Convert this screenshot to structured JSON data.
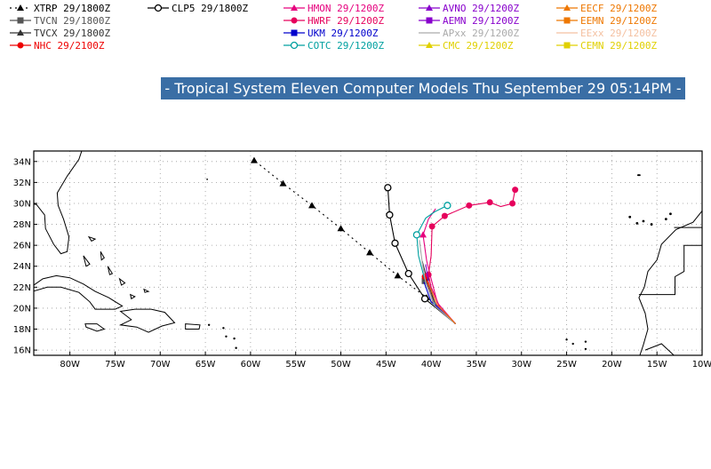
{
  "title": "- Tropical System Eleven Computer Models Thu September 29 05:14PM -",
  "legend": [
    {
      "id": "xtrp",
      "label": "XTRP  29/1800Z",
      "color": "#000000",
      "marker": "triangle",
      "dash": "2,4"
    },
    {
      "id": "tvcn",
      "label": "TVCN  29/1800Z",
      "color": "#555555",
      "marker": "square",
      "dash": ""
    },
    {
      "id": "tvcx",
      "label": "TVCX  29/1800Z",
      "color": "#333333",
      "marker": "triangle",
      "dash": ""
    },
    {
      "id": "nhc",
      "label": "NHC  29/2100Z",
      "color": "#ee0000",
      "marker": "circle",
      "dash": ""
    },
    {
      "id": "clp5",
      "label": "CLP5  29/1800Z",
      "color": "#000000",
      "marker": "ring",
      "dash": ""
    },
    {
      "id": "hmon",
      "label": "HMON  29/1200Z",
      "color": "#e6007e",
      "marker": "triangle",
      "dash": ""
    },
    {
      "id": "hwrf",
      "label": "HWRF  29/1200Z",
      "color": "#e6005c",
      "marker": "circle",
      "dash": ""
    },
    {
      "id": "ukm",
      "label": "UKM  29/1200Z",
      "color": "#0000cc",
      "marker": "square",
      "dash": ""
    },
    {
      "id": "cotc",
      "label": "COTC  29/1200Z",
      "color": "#00a0a0",
      "marker": "ring",
      "dash": ""
    },
    {
      "id": "avno",
      "label": "AVNO  29/1200Z",
      "color": "#8800cc",
      "marker": "triangle",
      "dash": ""
    },
    {
      "id": "aemn",
      "label": "AEMN  29/1200Z",
      "color": "#8800cc",
      "marker": "square",
      "dash": ""
    },
    {
      "id": "apxx",
      "label": "APxx  29/1200Z",
      "color": "#aaaaaa",
      "marker": "none",
      "dash": ""
    },
    {
      "id": "cmc",
      "label": "CMC  29/1200Z",
      "color": "#e0d000",
      "marker": "triangle",
      "dash": ""
    },
    {
      "id": "eecf",
      "label": "EECF  29/1200Z",
      "color": "#ee7700",
      "marker": "triangle",
      "dash": ""
    },
    {
      "id": "eemn",
      "label": "EEMN  29/1200Z",
      "color": "#ee7700",
      "marker": "square",
      "dash": ""
    },
    {
      "id": "eexx",
      "label": "EExx  29/1200Z",
      "color": "#f4c0a0",
      "marker": "none",
      "dash": ""
    },
    {
      "id": "cemn",
      "label": "CEMN  29/1200Z",
      "color": "#e0d000",
      "marker": "square",
      "dash": ""
    }
  ],
  "map": {
    "lon_range": [
      -84,
      -10
    ],
    "lat_range": [
      15.5,
      35
    ],
    "lon_ticks": [
      -80,
      -75,
      -70,
      -65,
      -60,
      -55,
      -50,
      -45,
      -40,
      -35,
      -30,
      -25,
      -20,
      -15,
      -10
    ],
    "lon_labels": [
      "80W",
      "75W",
      "70W",
      "65W",
      "60W",
      "55W",
      "50W",
      "45W",
      "40W",
      "35W",
      "30W",
      "25W",
      "20W",
      "15W",
      "10W"
    ],
    "lat_ticks": [
      16,
      18,
      20,
      22,
      24,
      26,
      28,
      30,
      32,
      34
    ],
    "lat_labels": [
      "16N",
      "18N",
      "20N",
      "22N",
      "24N",
      "26N",
      "28N",
      "30N",
      "32N",
      "34N"
    ],
    "grid": true
  },
  "tracks": [
    {
      "model": "xtrp",
      "points": [
        [
          -37.3,
          18.5
        ],
        [
          -40.5,
          21.0
        ],
        [
          -43.7,
          23.1
        ],
        [
          -46.8,
          25.3
        ],
        [
          -50.0,
          27.6
        ],
        [
          -53.2,
          29.8
        ],
        [
          -56.4,
          31.9
        ],
        [
          -59.6,
          34.1
        ]
      ]
    },
    {
      "model": "clp5",
      "points": [
        [
          -37.3,
          18.5
        ],
        [
          -40.7,
          20.9
        ],
        [
          -42.5,
          23.3
        ],
        [
          -44.0,
          26.2
        ],
        [
          -44.6,
          28.9
        ],
        [
          -44.8,
          31.5
        ]
      ]
    },
    {
      "model": "tvcn",
      "points": [
        [
          -37.3,
          18.5
        ],
        [
          -39.5,
          20.2
        ],
        [
          -40.7,
          22.6
        ]
      ]
    },
    {
      "model": "tvcx",
      "points": [
        [
          -37.3,
          18.5
        ],
        [
          -39.6,
          20.4
        ],
        [
          -40.5,
          22.9
        ],
        [
          -41.0,
          24.5
        ]
      ]
    },
    {
      "model": "nhc",
      "points": [
        [
          -37.3,
          18.5
        ],
        [
          -39.8,
          20.5
        ],
        [
          -40.5,
          22.6
        ],
        [
          -40.7,
          23.0
        ]
      ]
    },
    {
      "model": "hmon",
      "points": [
        [
          -37.3,
          18.5
        ],
        [
          -39.3,
          20.5
        ],
        [
          -40.0,
          22.8
        ],
        [
          -40.5,
          24.5
        ],
        [
          -40.9,
          27.0
        ],
        [
          -40.3,
          28.5
        ],
        [
          -39.5,
          29.5
        ]
      ]
    },
    {
      "model": "hwrf",
      "points": [
        [
          -37.3,
          18.5
        ],
        [
          -39.0,
          20.0
        ],
        [
          -40.0,
          22.0
        ],
        [
          -40.3,
          23.2
        ],
        [
          -40.0,
          25.0
        ],
        [
          -39.9,
          27.8
        ],
        [
          -38.5,
          28.8
        ],
        [
          -35.8,
          29.8
        ],
        [
          -33.5,
          30.1
        ],
        [
          -32.3,
          29.7
        ],
        [
          -31.0,
          30.0
        ],
        [
          -30.7,
          31.3
        ]
      ]
    },
    {
      "model": "ukm",
      "points": [
        [
          -37.3,
          18.5
        ],
        [
          -40.0,
          20.6
        ],
        [
          -40.8,
          22.5
        ]
      ]
    },
    {
      "model": "cotc",
      "points": [
        [
          -37.3,
          18.5
        ],
        [
          -39.8,
          20.6
        ],
        [
          -40.8,
          23.0
        ],
        [
          -41.4,
          25.0
        ],
        [
          -41.6,
          27.0
        ],
        [
          -40.6,
          28.6
        ],
        [
          -39.6,
          29.2
        ],
        [
          -38.2,
          29.8
        ]
      ]
    },
    {
      "model": "avno",
      "points": [
        [
          -37.3,
          18.5
        ],
        [
          -39.4,
          20.3
        ],
        [
          -40.3,
          22.5
        ],
        [
          -40.6,
          24.2
        ]
      ]
    },
    {
      "model": "apxx",
      "points": [
        [
          -37.3,
          18.5
        ],
        [
          -39.6,
          20.2
        ],
        [
          -40.6,
          22.4
        ],
        [
          -41.0,
          24.4
        ],
        [
          -41.3,
          26.5
        ]
      ]
    },
    {
      "model": "eemn",
      "points": [
        [
          -37.3,
          18.5
        ],
        [
          -39.4,
          20.4
        ],
        [
          -40.4,
          22.6
        ]
      ]
    }
  ]
}
